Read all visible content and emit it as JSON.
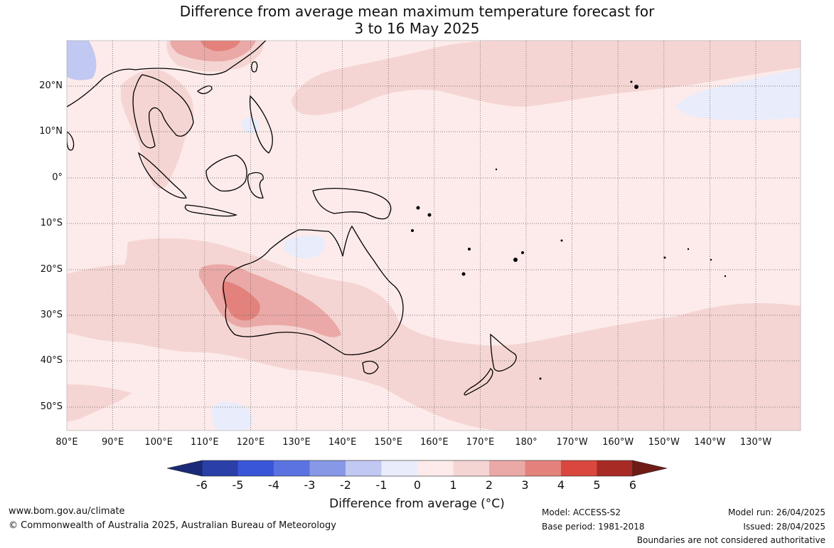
{
  "title": {
    "line1": "Difference from average mean maximum temperature forecast for",
    "line2": "3 to 16 May 2025"
  },
  "map": {
    "lat_labels": [
      "20°N",
      "10°N",
      "0°",
      "10°S",
      "20°S",
      "30°S",
      "40°S",
      "50°S"
    ],
    "lon_labels": [
      "80°E",
      "90°E",
      "100°E",
      "110°E",
      "120°E",
      "130°E",
      "140°E",
      "150°E",
      "160°E",
      "170°E",
      "180°",
      "170°W",
      "160°W",
      "150°W",
      "140°W",
      "130°W"
    ],
    "background_category": "0 to 1",
    "features": [
      {
        "region": "Western Australia interior",
        "category": "2 to 3"
      },
      {
        "region": "southern Australia",
        "category": "1 to 2"
      },
      {
        "region": "Tasman Sea and south Pacific",
        "category": "1 to 2"
      },
      {
        "region": "Southeast Asia",
        "category": "1 to 2"
      },
      {
        "region": "north-west Pacific",
        "category": "1 to 2"
      },
      {
        "region": "Gulf of Carpentaria / Arnhem Land",
        "category": "-1 to 0"
      },
      {
        "region": "north-east Pacific near 140°W",
        "category": "-1 to 0"
      }
    ]
  },
  "colorbar": {
    "label": "Difference from average (°C)",
    "ticks": [
      "-6",
      "-5",
      "-4",
      "-3",
      "-2",
      "-1",
      "0",
      "1",
      "2",
      "3",
      "4",
      "5",
      "6"
    ],
    "colors": [
      "#1a2a78",
      "#2b3fa8",
      "#3a56d8",
      "#5b73e0",
      "#8798e6",
      "#c1c8f2",
      "#e9ecfb",
      "#fcebea",
      "#f5d5d3",
      "#eaa9a6",
      "#e3827c",
      "#d9473e",
      "#a72a24",
      "#6f1c16"
    ]
  },
  "footer": {
    "website": "www.bom.gov.au/climate",
    "copyright": "© Commonwealth of Australia 2025, Australian Bureau of Meteorology",
    "model": "Model: ACCESS-S2",
    "base_period": "Base period: 1981-2018",
    "model_run": "Model run: 26/04/2025",
    "issued": "Issued: 28/04/2025",
    "disclaimer": "Boundaries are not considered authoritative"
  }
}
